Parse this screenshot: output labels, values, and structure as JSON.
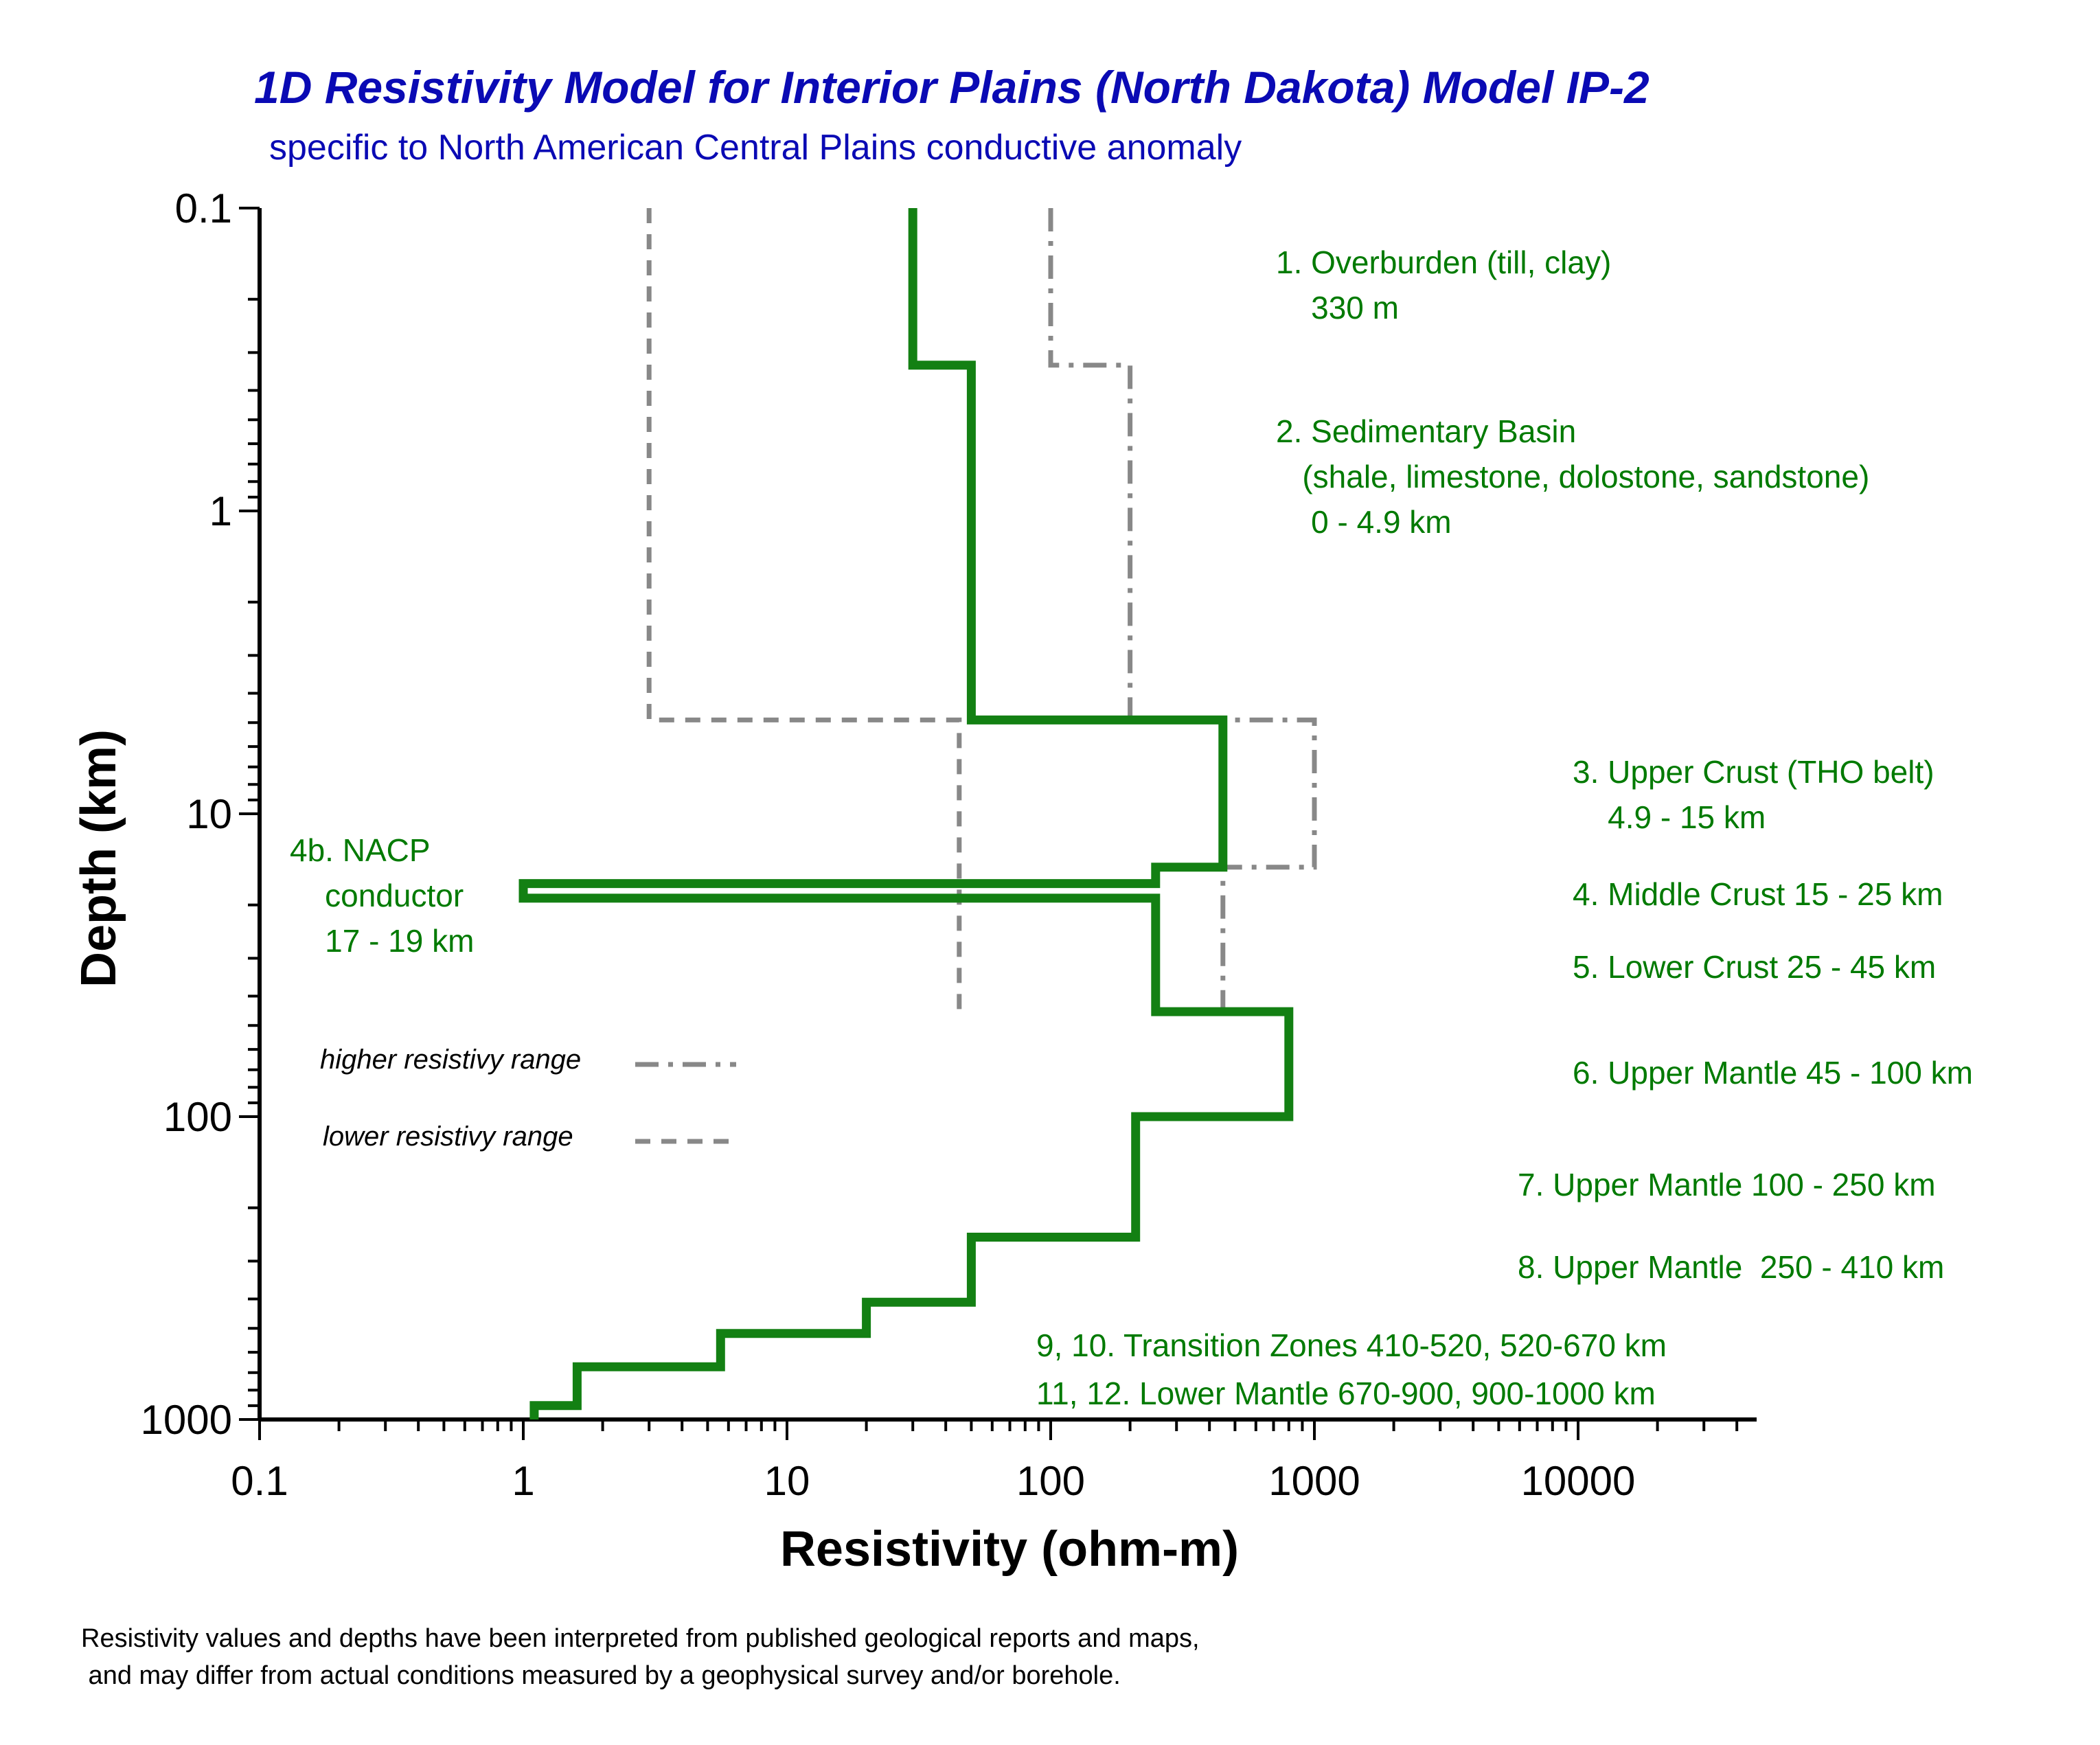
{
  "chart_data": {
    "type": "line",
    "title": "1D Resistivity Model for Interior Plains (North Dakota)  Model IP-2",
    "subtitle": "specific to North American Central Plains conductive anomaly",
    "xlabel": "Resistivity (ohm-m)",
    "ylabel": "Depth (km)",
    "xscale": "log",
    "yscale": "log",
    "y_inverted": true,
    "xlim": [
      0.1,
      50000
    ],
    "ylim": [
      0.1,
      1000
    ],
    "x_ticks": [
      {
        "value": 0.1,
        "label": "0.1"
      },
      {
        "value": 1,
        "label": "1"
      },
      {
        "value": 10,
        "label": "10"
      },
      {
        "value": 100,
        "label": "100"
      },
      {
        "value": 1000,
        "label": "1000"
      },
      {
        "value": 10000,
        "label": "10000"
      }
    ],
    "y_ticks": [
      {
        "value": 0.1,
        "label": "0.1"
      },
      {
        "value": 1,
        "label": "1"
      },
      {
        "value": 10,
        "label": "10"
      },
      {
        "value": 100,
        "label": "100"
      },
      {
        "value": 1000,
        "label": "1000"
      }
    ],
    "series": [
      {
        "name": "Model IP-2",
        "style": "solid",
        "color": "#138013",
        "points": [
          [
            30,
            0.1
          ],
          [
            30,
            0.33
          ],
          [
            50,
            0.33
          ],
          [
            50,
            4.9
          ],
          [
            450,
            4.9
          ],
          [
            450,
            15
          ],
          [
            250,
            15
          ],
          [
            250,
            17
          ],
          [
            1,
            17
          ],
          [
            1,
            19
          ],
          [
            250,
            19
          ],
          [
            250,
            45
          ],
          [
            800,
            45
          ],
          [
            800,
            100
          ],
          [
            210,
            100
          ],
          [
            210,
            250
          ],
          [
            50,
            250
          ],
          [
            50,
            410
          ],
          [
            20,
            410
          ],
          [
            20,
            520
          ],
          [
            5.6,
            520
          ],
          [
            5.6,
            670
          ],
          [
            1.6,
            670
          ],
          [
            1.6,
            900
          ],
          [
            1.1,
            900
          ],
          [
            1.1,
            1000
          ]
        ]
      },
      {
        "name": "higher resistivy range",
        "style": "dash-dot",
        "color": "#888888",
        "points": [
          [
            100,
            0.1
          ],
          [
            100,
            0.33
          ],
          [
            200,
            0.33
          ],
          [
            200,
            4.9
          ],
          [
            1000,
            4.9
          ],
          [
            1000,
            15
          ],
          [
            450,
            15
          ],
          [
            450,
            45
          ]
        ]
      },
      {
        "name": "lower resistivy range",
        "style": "dashed",
        "color": "#888888",
        "points": [
          [
            3,
            0.1
          ],
          [
            3,
            4.9
          ],
          [
            45,
            4.9
          ],
          [
            45,
            45
          ]
        ]
      }
    ],
    "legend": {
      "placement": "center-left",
      "entries": [
        {
          "label": "higher resistivy range",
          "style": "dash-dot"
        },
        {
          "label": "lower resistivy range",
          "style": "dashed"
        }
      ]
    },
    "annotations": [
      {
        "id": "a1",
        "lines": [
          "1. Overburden (till, clay)",
          "    330 m"
        ]
      },
      {
        "id": "a2",
        "lines": [
          "2. Sedimentary Basin",
          "   (shale, limestone, dolostone, sandstone)",
          "    0 - 4.9 km"
        ]
      },
      {
        "id": "a3",
        "lines": [
          "3. Upper Crust (THO belt)",
          "    4.9 - 15 km"
        ]
      },
      {
        "id": "a4",
        "lines": [
          "4. Middle Crust 15 - 25 km"
        ]
      },
      {
        "id": "a5",
        "lines": [
          "5. Lower Crust 25 - 45 km"
        ]
      },
      {
        "id": "a6",
        "lines": [
          "6. Upper Mantle 45 - 100 km"
        ]
      },
      {
        "id": "a7",
        "lines": [
          "7. Upper Mantle 100 - 250 km"
        ]
      },
      {
        "id": "a8",
        "lines": [
          "8. Upper Mantle  250 - 410 km"
        ]
      },
      {
        "id": "a9",
        "lines": [
          "9, 10. Transition Zones 410-520, 520-670 km",
          "11, 12. Lower Mantle 670-900, 900-1000 km"
        ]
      },
      {
        "id": "a4b",
        "lines": [
          "4b. NACP",
          "    conductor",
          "    17 - 19 km"
        ]
      }
    ],
    "footnote": [
      "Resistivity values and depths have been interpreted from published geological reports and maps,",
      " and may differ from actual conditions measured by a geophysical survey and/or borehole."
    ]
  }
}
